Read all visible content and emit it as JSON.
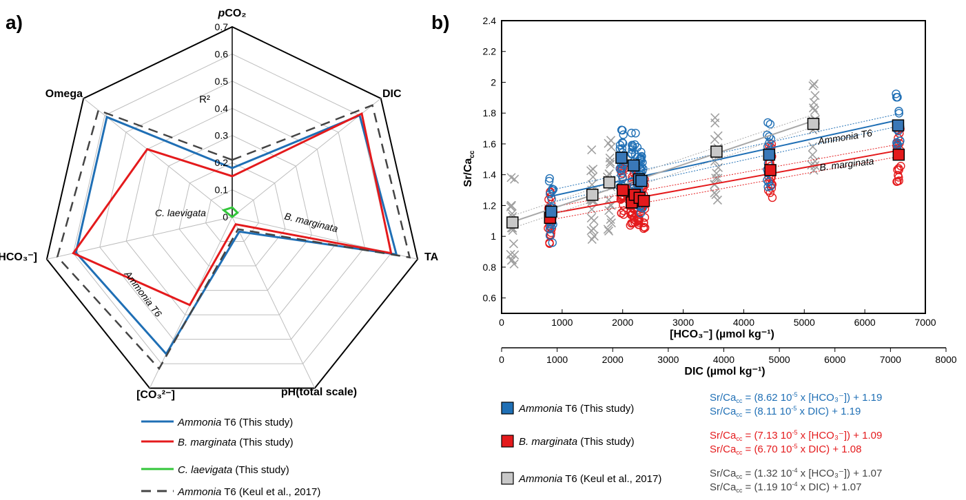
{
  "panel_labels": {
    "a": "a)",
    "b": "b)"
  },
  "colors": {
    "ammonia": "#1f6fb5",
    "bmarg": "#e41a1c",
    "claev": "#33c63a",
    "keul": "#444444",
    "keul_fill": "#c8c8c8",
    "grid": "#bdbdbd"
  },
  "chart_data": [
    {
      "type": "radar",
      "axes": [
        "pCO₂",
        "DIC",
        "TA",
        "pH(total scale)",
        "[CO₃²⁻]",
        "[HCO₃⁻]",
        "Omega"
      ],
      "r_label": "R²",
      "r_ticks": [
        "0",
        "0.1",
        "0.2",
        "0.3",
        "0.4",
        "0.5",
        "0.6",
        "0.7"
      ],
      "r_range": [
        0,
        0.7
      ],
      "series": [
        {
          "name_italic": "Ammonia",
          "name_rest": " T6 (This study)",
          "style": "solid",
          "color": "#1f6fb5",
          "values": [
            0.18,
            0.6,
            0.62,
            0.06,
            0.56,
            0.59,
            0.59
          ]
        },
        {
          "name_italic": "B. marginata",
          "name_rest": " (This study)",
          "style": "solid",
          "color": "#e41a1c",
          "values": [
            0.15,
            0.61,
            0.6,
            0.03,
            0.36,
            0.6,
            0.4
          ]
        },
        {
          "name_italic": "C. laevigata",
          "name_rest": " (This study)",
          "style": "solid",
          "color": "#33c63a",
          "values": [
            0.035,
            0.025,
            0.0,
            0.0,
            0.0,
            0.0,
            0.04
          ]
        },
        {
          "name_italic": "Ammonia",
          "name_rest": " T6 (Keul et al., 2017)",
          "style": "dashed",
          "color": "#444444",
          "values": [
            0.21,
            0.66,
            0.67,
            0.05,
            0.62,
            0.66,
            0.63
          ]
        }
      ],
      "annotations": [
        "C. laevigata",
        "B. marginata",
        "Ammonia T6"
      ]
    },
    {
      "type": "scatter",
      "ylabel": "Sr/Ca",
      "ylabel_sub": "cc",
      "ylim": [
        0.5,
        2.4
      ],
      "yticks": [
        "0.6",
        "0.8",
        "1",
        "1.2",
        "1.4",
        "1.6",
        "1.8",
        "2",
        "2.2",
        "2.4"
      ],
      "xlabel_top": "[HCO₃⁻] (µmol kg⁻¹)",
      "xlim_top": [
        0,
        7000
      ],
      "xticks_top": [
        "0",
        "1000",
        "2000",
        "3000",
        "4000",
        "5000",
        "6000",
        "7000"
      ],
      "xlabel_bottom": "DIC (µmol kg⁻¹)",
      "xlim_bottom": [
        0,
        8000
      ],
      "xticks_bottom": [
        "0",
        "1000",
        "2000",
        "3000",
        "4000",
        "5000",
        "6000",
        "7000",
        "8000"
      ],
      "line_labels": [
        "Ammonia T6",
        "B. marginata"
      ],
      "series": [
        {
          "name": "Ammonia T6 (This study)",
          "marker": "circle",
          "color": "#1f6fb5",
          "means": [
            [
              820,
              1.16
            ],
            [
              1980,
              1.51
            ],
            [
              2180,
              1.46
            ],
            [
              2270,
              1.37
            ],
            [
              2310,
              1.36
            ],
            [
              4420,
              1.53
            ],
            [
              6550,
              1.72
            ]
          ],
          "fit": {
            "slope": 8.62e-05,
            "intercept": 1.19
          }
        },
        {
          "name": "B. marginata (This study)",
          "marker": "circle",
          "color": "#e41a1c",
          "means": [
            [
              800,
              1.12
            ],
            [
              2000,
              1.3
            ],
            [
              2150,
              1.22
            ],
            [
              2200,
              1.27
            ],
            [
              2280,
              1.25
            ],
            [
              2350,
              1.23
            ],
            [
              4440,
              1.43
            ],
            [
              6560,
              1.53
            ]
          ],
          "fit": {
            "slope": 7.13e-05,
            "intercept": 1.09
          }
        },
        {
          "name": "Ammonia T6 (Keul et al., 2017)",
          "marker": "cross",
          "color": "#a0a0a0",
          "means": [
            [
              180,
              1.09
            ],
            [
              1500,
              1.27
            ],
            [
              1780,
              1.35
            ],
            [
              3550,
              1.55
            ],
            [
              5150,
              1.73
            ]
          ],
          "fit": {
            "slope": 0.000132,
            "intercept": 1.07
          }
        }
      ]
    }
  ],
  "legend_a": [
    {
      "italic": "Ammonia",
      "rest": " T6 (This study)"
    },
    {
      "italic": "B. marginata",
      "rest": " (This study)"
    },
    {
      "italic": "C. laevigata",
      "rest": " (This study)"
    },
    {
      "italic": "Ammonia",
      "rest": " T6 (Keul et al., 2017)"
    }
  ],
  "legend_b": [
    {
      "italic": "Ammonia",
      "rest": " T6 (This study)",
      "eq1": "Sr/Ca",
      "eq1_sub": "cc",
      "eq1_rest": " = (8.62 10",
      "eq1_exp": "-5",
      "eq1_end": " x [HCO₃⁻]) + 1.19",
      "eq2": "Sr/Ca",
      "eq2_sub": "cc",
      "eq2_rest": " = (8.11 10",
      "eq2_exp": "-5",
      "eq2_end": " x DIC) + 1.19"
    },
    {
      "italic": "B. marginata",
      "rest": " (This study)",
      "eq1": "Sr/Ca",
      "eq1_sub": "cc",
      "eq1_rest": " = (7.13 10",
      "eq1_exp": "-5",
      "eq1_end": " x [HCO₃⁻]) + 1.09",
      "eq2": "Sr/Ca",
      "eq2_sub": "cc",
      "eq2_rest": " = (6.70 10",
      "eq2_exp": "-5",
      "eq2_end": " x DIC) + 1.08"
    },
    {
      "italic": "Ammonia",
      "rest": " T6 (Keul et al., 2017)",
      "eq1": "Sr/Ca",
      "eq1_sub": "cc",
      "eq1_rest": " = (1.32 10",
      "eq1_exp": "-4",
      "eq1_end": " x [HCO₃⁻]) + 1.07",
      "eq2": "Sr/Ca",
      "eq2_sub": "cc",
      "eq2_rest": " = (1.19 10",
      "eq2_exp": "-4",
      "eq2_end": " x DIC) + 1.07"
    }
  ]
}
